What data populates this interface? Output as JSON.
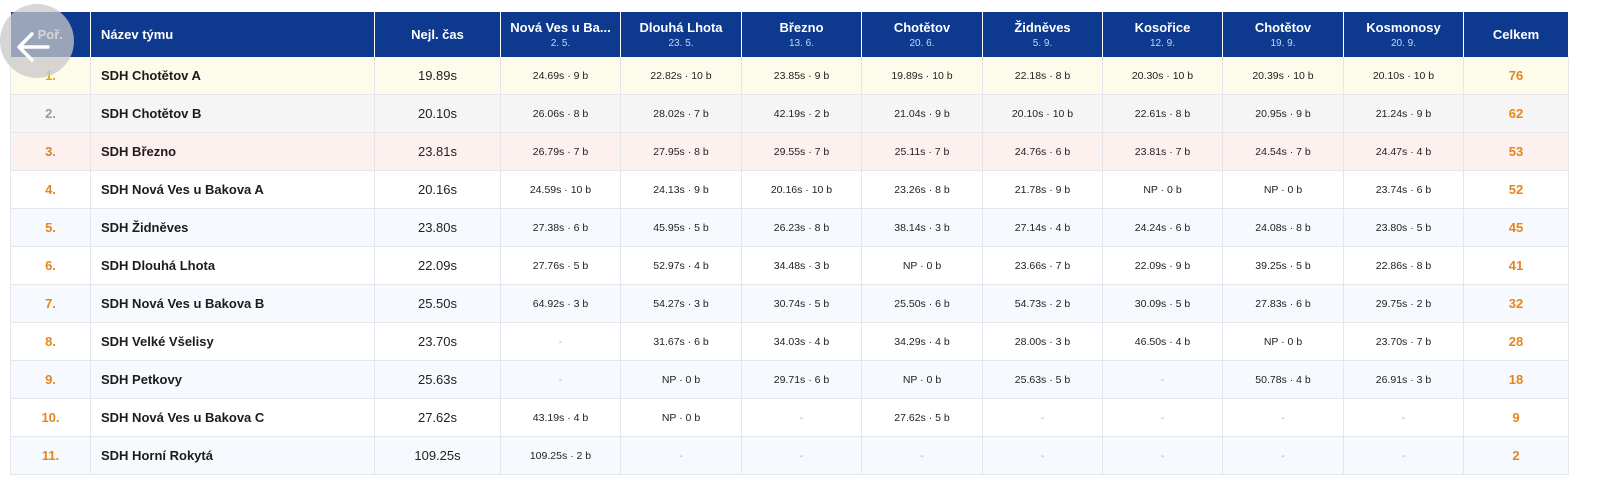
{
  "table": {
    "header": {
      "rank": "Poř.",
      "team": "Název týmu",
      "best": "Nejl. čas",
      "total": "Celkem",
      "races": [
        {
          "name": "Nová Ves u Ba...",
          "date": "2. 5."
        },
        {
          "name": "Dlouhá Lhota",
          "date": "23. 5."
        },
        {
          "name": "Březno",
          "date": "13. 6."
        },
        {
          "name": "Chotětov",
          "date": "20. 6."
        },
        {
          "name": "Židněves",
          "date": "5. 9."
        },
        {
          "name": "Kosořice",
          "date": "12. 9."
        },
        {
          "name": "Chotětov",
          "date": "19. 9."
        },
        {
          "name": "Kosmonosy",
          "date": "20. 9."
        }
      ]
    },
    "rows": [
      {
        "rank": "1.",
        "team": "SDH Chotětov A",
        "best": "19.89s",
        "results": [
          "24.69s · 9 b",
          "22.82s · 10 b",
          "23.85s · 9 b",
          "19.89s · 10 b",
          "22.18s · 8 b",
          "20.30s · 10 b",
          "20.39s · 10 b",
          "20.10s · 10 b"
        ],
        "total": "76"
      },
      {
        "rank": "2.",
        "team": "SDH Chotětov B",
        "best": "20.10s",
        "results": [
          "26.06s · 8 b",
          "28.02s · 7 b",
          "42.19s · 2 b",
          "21.04s · 9 b",
          "20.10s · 10 b",
          "22.61s · 8 b",
          "20.95s · 9 b",
          "21.24s · 9 b"
        ],
        "total": "62"
      },
      {
        "rank": "3.",
        "team": "SDH Březno",
        "best": "23.81s",
        "results": [
          "26.79s · 7 b",
          "27.95s · 8 b",
          "29.55s · 7 b",
          "25.11s · 7 b",
          "24.76s · 6 b",
          "23.81s · 7 b",
          "24.54s · 7 b",
          "24.47s · 4 b"
        ],
        "total": "53"
      },
      {
        "rank": "4.",
        "team": "SDH Nová Ves u Bakova A",
        "best": "20.16s",
        "results": [
          "24.59s · 10 b",
          "24.13s · 9 b",
          "20.16s · 10 b",
          "23.26s · 8 b",
          "21.78s · 9 b",
          "NP · 0 b",
          "NP · 0 b",
          "23.74s · 6 b"
        ],
        "total": "52"
      },
      {
        "rank": "5.",
        "team": "SDH Židněves",
        "best": "23.80s",
        "results": [
          "27.38s · 6 b",
          "45.95s · 5 b",
          "26.23s · 8 b",
          "38.14s · 3 b",
          "27.14s · 4 b",
          "24.24s · 6 b",
          "24.08s · 8 b",
          "23.80s · 5 b"
        ],
        "total": "45"
      },
      {
        "rank": "6.",
        "team": "SDH Dlouhá Lhota",
        "best": "22.09s",
        "results": [
          "27.76s · 5 b",
          "52.97s · 4 b",
          "34.48s · 3 b",
          "NP · 0 b",
          "23.66s · 7 b",
          "22.09s · 9 b",
          "39.25s · 5 b",
          "22.86s · 8 b"
        ],
        "total": "41"
      },
      {
        "rank": "7.",
        "team": "SDH Nová Ves u Bakova B",
        "best": "25.50s",
        "results": [
          "64.92s · 3 b",
          "54.27s · 3 b",
          "30.74s · 5 b",
          "25.50s · 6 b",
          "54.73s · 2 b",
          "30.09s · 5 b",
          "27.83s · 6 b",
          "29.75s · 2 b"
        ],
        "total": "32"
      },
      {
        "rank": "8.",
        "team": "SDH Velké Všelisy",
        "best": "23.70s",
        "results": [
          "-",
          "31.67s · 6 b",
          "34.03s · 4 b",
          "34.29s · 4 b",
          "28.00s · 3 b",
          "46.50s · 4 b",
          "NP · 0 b",
          "23.70s · 7 b"
        ],
        "total": "28"
      },
      {
        "rank": "9.",
        "team": "SDH Petkovy",
        "best": "25.63s",
        "results": [
          "-",
          "NP · 0 b",
          "29.71s · 6 b",
          "NP · 0 b",
          "25.63s · 5 b",
          "-",
          "50.78s · 4 b",
          "26.91s · 3 b"
        ],
        "total": "18"
      },
      {
        "rank": "10.",
        "team": "SDH Nová Ves u Bakova C",
        "best": "27.62s",
        "results": [
          "43.19s · 4 b",
          "NP · 0 b",
          "-",
          "27.62s · 5 b",
          "-",
          "-",
          "-",
          "-"
        ],
        "total": "9"
      },
      {
        "rank": "11.",
        "team": "SDH Horní Rokytá",
        "best": "109.25s",
        "results": [
          "109.25s · 2 b",
          "-",
          "-",
          "-",
          "-",
          "-",
          "-",
          "-"
        ],
        "total": "2"
      }
    ]
  }
}
